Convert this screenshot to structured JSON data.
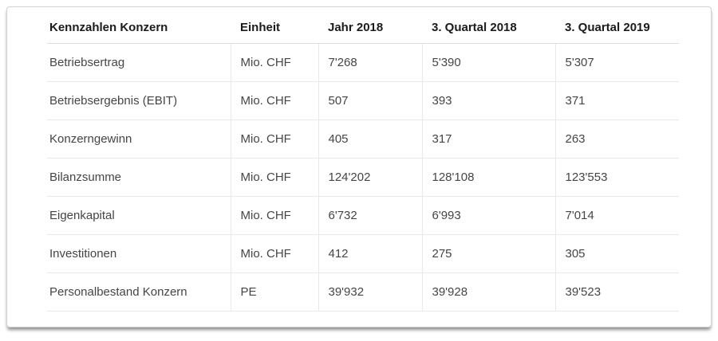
{
  "chart_data": {
    "type": "table",
    "title": "Kennzahlen Konzern",
    "columns": [
      "Kennzahlen Konzern",
      "Einheit",
      "Jahr 2018",
      "3. Quartal 2018",
      "3. Quartal 2019"
    ],
    "rows": [
      [
        "Betriebsertrag",
        "Mio. CHF",
        "7'268",
        "5'390",
        "5'307"
      ],
      [
        "Betriebsergebnis (EBIT)",
        "Mio. CHF",
        "507",
        "393",
        "371"
      ],
      [
        "Konzerngewinn",
        "Mio. CHF",
        "405",
        "317",
        "263"
      ],
      [
        "Bilanzsumme",
        "Mio. CHF",
        "124'202",
        "128'108",
        "123'553"
      ],
      [
        "Eigenkapital",
        "Mio. CHF",
        "6'732",
        "6'993",
        "7'014"
      ],
      [
        "Investitionen",
        "Mio. CHF",
        "412",
        "275",
        "305"
      ],
      [
        "Personalbestand Konzern",
        "PE",
        "39'932",
        "39'928",
        "39'523"
      ]
    ],
    "layout": {
      "grid": "light horizontal and vertical separators in body, header bottom rule only",
      "number_format": "Swiss apostrophe thousands separator"
    }
  },
  "colors": {
    "background": "#ffffff",
    "header_text": "#1b1b1b",
    "body_text": "#454545",
    "grid_line": "#e9e9e9",
    "header_rule": "#dedede",
    "card_border": "#d2d2d2"
  }
}
